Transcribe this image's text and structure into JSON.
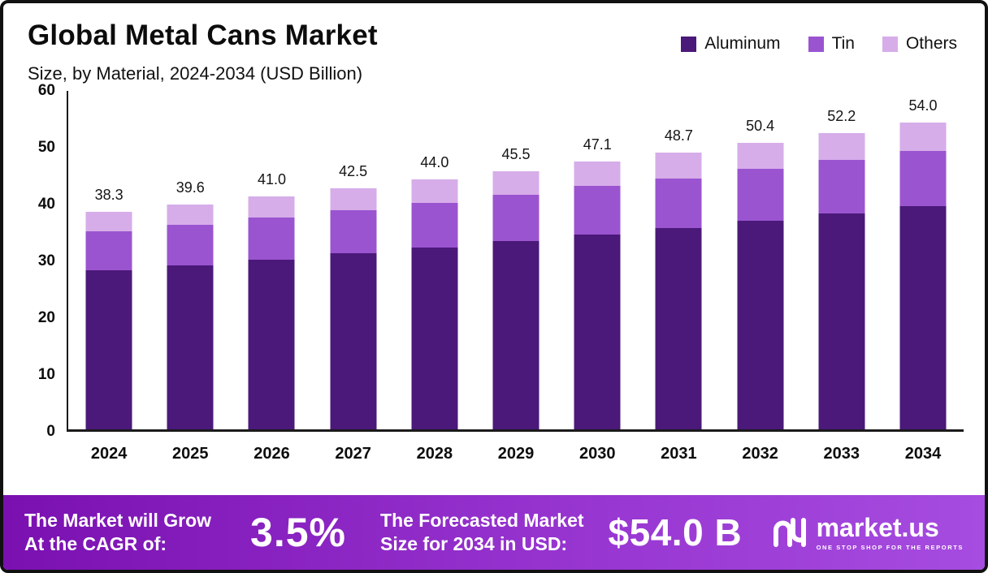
{
  "header": {
    "title": "Global Metal Cans Market",
    "subtitle": "Size, by Material, 2024-2034 (USD Billion)"
  },
  "chart_data": {
    "type": "bar",
    "stacked": true,
    "title": "Global Metal Cans Market Size, by Material, 2024-2034 (USD Billion)",
    "categories": [
      "2024",
      "2025",
      "2026",
      "2027",
      "2028",
      "2029",
      "2030",
      "2031",
      "2032",
      "2033",
      "2034"
    ],
    "series": [
      {
        "name": "Aluminum",
        "color": "#4b1979",
        "values": [
          28.0,
          28.9,
          29.9,
          31.0,
          32.0,
          33.1,
          34.3,
          35.4,
          36.7,
          38.0,
          39.3
        ]
      },
      {
        "name": "Tin",
        "color": "#9b54d0",
        "values": [
          6.8,
          7.1,
          7.4,
          7.6,
          7.9,
          8.2,
          8.5,
          8.8,
          9.1,
          9.4,
          9.7
        ]
      },
      {
        "name": "Others",
        "color": "#d6ade9",
        "values": [
          3.5,
          3.6,
          3.7,
          3.9,
          4.1,
          4.2,
          4.3,
          4.5,
          4.6,
          4.8,
          5.0
        ]
      }
    ],
    "totals": [
      38.3,
      39.6,
      41.0,
      42.5,
      44.0,
      45.5,
      47.1,
      48.7,
      50.4,
      52.2,
      54.0
    ],
    "ylim": [
      0,
      60
    ],
    "yticks": [
      0,
      10,
      20,
      30,
      40,
      50,
      60
    ],
    "grid": false,
    "legend_position": "top-right"
  },
  "banner": {
    "cagr_label_line1": "The Market will Grow",
    "cagr_label_line2": "At the CAGR of:",
    "cagr_value": "3.5%",
    "forecast_label_line1": "The Forecasted Market",
    "forecast_label_line2": "Size for 2034 in USD:",
    "forecast_value": "$54.0 B",
    "logo_text": "market.us",
    "logo_tagline": "One Stop Shop For The Reports"
  }
}
